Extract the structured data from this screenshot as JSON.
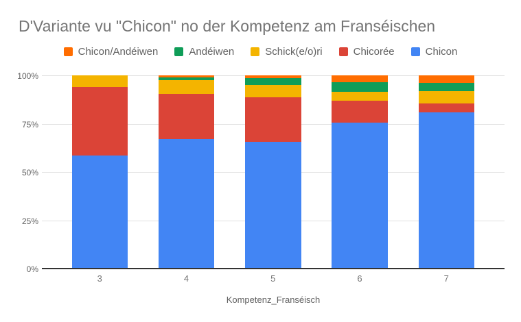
{
  "chart_data": {
    "type": "bar",
    "variant": "stacked-100-percent-column",
    "title": "D'Variante vu \"Chicon\" no der Kompetenz am Franséischen",
    "xlabel": "Kompetenz_Franséisch",
    "ylabel": "",
    "categories": [
      "3",
      "4",
      "5",
      "6",
      "7"
    ],
    "series": [
      {
        "name": "Chicon",
        "color": "#4285F4",
        "values": [
          58.5,
          67.0,
          65.5,
          75.5,
          81.0
        ]
      },
      {
        "name": "Chicorée",
        "color": "#DB4437",
        "values": [
          35.5,
          23.5,
          23.0,
          11.5,
          4.5
        ]
      },
      {
        "name": "Schick(e/o)ri",
        "color": "#F4B400",
        "values": [
          6.0,
          7.0,
          6.5,
          4.5,
          6.5
        ]
      },
      {
        "name": "Andéiwen",
        "color": "#0F9D58",
        "values": [
          0.0,
          1.5,
          3.5,
          5.0,
          4.0
        ]
      },
      {
        "name": "Chicon/Andéiwen",
        "color": "#FF6D00",
        "values": [
          0.0,
          1.0,
          1.5,
          3.5,
          4.0
        ]
      }
    ],
    "values_unit": "percent",
    "ylim": [
      0,
      100
    ],
    "y_ticks": [
      {
        "value": 0,
        "label": "0%"
      },
      {
        "value": 25,
        "label": "25%"
      },
      {
        "value": 50,
        "label": "50%"
      },
      {
        "value": 75,
        "label": "75%"
      },
      {
        "value": 100,
        "label": "100%"
      }
    ],
    "grid": true,
    "legend": {
      "position": "top",
      "items": [
        {
          "label": "Chicon/Andéiwen",
          "color": "#FF6D00"
        },
        {
          "label": "Andéiwen",
          "color": "#0F9D58"
        },
        {
          "label": "Schick(e/o)ri",
          "color": "#F4B400"
        },
        {
          "label": "Chicorée",
          "color": "#DB4437"
        },
        {
          "label": "Chicon",
          "color": "#4285F4"
        }
      ]
    }
  },
  "colors": {
    "background": "#ffffff",
    "title_text": "#757575",
    "legend_text": "#616161",
    "y_tick_text": "#616161",
    "x_tick_text": "#757575",
    "axis_title_text": "#616161",
    "gridline": "#e0e0e0",
    "baseline": "#333333"
  }
}
